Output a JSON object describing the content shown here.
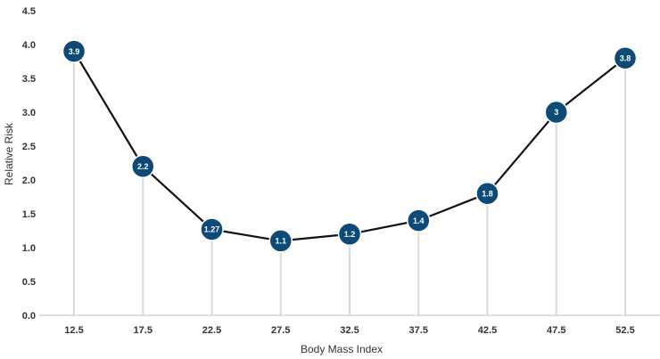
{
  "chart_data": {
    "type": "line",
    "title": "",
    "xlabel": "Body Mass Index",
    "ylabel": "Relative Risk",
    "x": [
      "12.5",
      "17.5",
      "22.5",
      "27.5",
      "32.5",
      "37.5",
      "42.5",
      "47.5",
      "52.5"
    ],
    "series": [
      {
        "values": [
          3.9,
          2.2,
          1.27,
          1.1,
          1.2,
          1.4,
          1.8,
          3,
          3.8
        ],
        "labels": [
          "3.9",
          "2.2",
          "1.27",
          "1.1",
          "1.2",
          "1.4",
          "1.8",
          "3",
          "3.8"
        ]
      }
    ],
    "ylim": [
      0,
      4.5
    ],
    "yticks": [
      "0.0",
      "0.5",
      "1.0",
      "1.5",
      "2.0",
      "2.5",
      "3.0",
      "3.5",
      "4.0",
      "4.5"
    ],
    "grid": false,
    "colors": {
      "marker": "#0d4a78",
      "line": "#111111",
      "stem": "#d9d9d9",
      "axis": "#bfbfbf"
    }
  }
}
